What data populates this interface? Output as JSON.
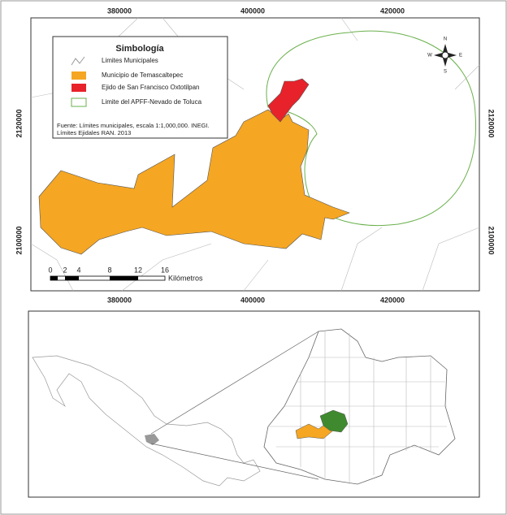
{
  "map": {
    "x_ticks": [
      380000,
      400000,
      420000
    ],
    "y_ticks": [
      2120000,
      2100000
    ],
    "legend": {
      "title": "Simbología",
      "items": [
        "Limites Municipales",
        "Municipio de Temascaltepec",
        "Ejido de San Francisco Oxtotilpan",
        "Limite del APFF-Nevado de Toluca"
      ],
      "source": [
        "Fuente: Límites municipales, escala 1:1,000,000. INEGI.",
        "Límites Ejidales RAN. 2013"
      ]
    },
    "scale_bar": {
      "labels": [
        0,
        2,
        4,
        8,
        12,
        16
      ],
      "unit": "Kilómetros"
    },
    "compass": {
      "n": "N",
      "s": "S",
      "e": "E",
      "w": "W"
    }
  }
}
